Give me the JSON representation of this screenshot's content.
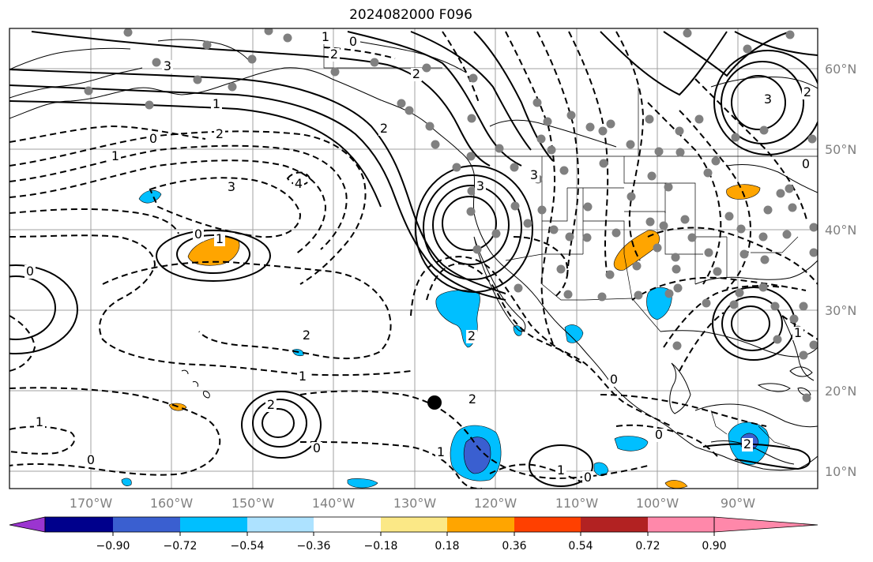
{
  "title": "2024082000 F096",
  "lon_labels": [
    "170°W",
    "160°W",
    "150°W",
    "140°W",
    "130°W",
    "120°W",
    "110°W",
    "100°W",
    "90°W"
  ],
  "lat_labels": [
    "60°N",
    "50°N",
    "40°N",
    "30°N",
    "20°N",
    "10°N"
  ],
  "colorbar": {
    "ticks": [
      "−0.90",
      "−0.72",
      "−0.54",
      "−0.36",
      "−0.18",
      "0.18",
      "0.36",
      "0.54",
      "0.72",
      "0.90"
    ],
    "colors": [
      "#9b35d0",
      "#00008c",
      "#3a5fd0",
      "#00bfff",
      "#ade2ff",
      "#ffffff",
      "#fbe886",
      "#ffa500",
      "#ff4000",
      "#b22222",
      "#ff88aa"
    ]
  },
  "contour_labels": [
    {
      "t": "0"
    },
    {
      "t": "2"
    },
    {
      "t": "1"
    },
    {
      "t": "3"
    },
    {
      "t": "2"
    },
    {
      "t": "1"
    },
    {
      "t": "0"
    },
    {
      "t": "1"
    },
    {
      "t": "2"
    },
    {
      "t": "3"
    },
    {
      "t": "4"
    },
    {
      "t": "0"
    },
    {
      "t": "1"
    },
    {
      "t": "0"
    },
    {
      "t": "2"
    },
    {
      "t": "1"
    },
    {
      "t": "2"
    },
    {
      "t": "1"
    },
    {
      "t": "0"
    },
    {
      "t": "2"
    },
    {
      "t": "1"
    },
    {
      "t": "0"
    },
    {
      "t": "1"
    },
    {
      "t": "0"
    },
    {
      "t": "2"
    },
    {
      "t": "3"
    },
    {
      "t": "3"
    },
    {
      "t": "2"
    },
    {
      "t": "0"
    },
    {
      "t": "0"
    },
    {
      "t": "2"
    },
    {
      "t": "0"
    },
    {
      "t": "1"
    },
    {
      "t": "3"
    },
    {
      "t": "0"
    },
    {
      "t": "2"
    }
  ]
}
